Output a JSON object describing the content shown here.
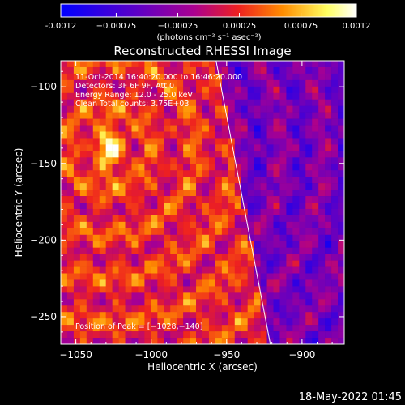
{
  "chart_data": {
    "type": "heatmap",
    "title": "Reconstructed RHESSI Image",
    "xlabel": "Heliocentric X (arcsec)",
    "ylabel": "Heliocentric Y (arcsec)",
    "xlim": [
      -1060,
      -872
    ],
    "ylim": [
      -268,
      -83
    ],
    "xticks": [
      -1050,
      -1000,
      -950,
      -900
    ],
    "xtick_labels": [
      "−1050",
      "−1000",
      "−950",
      "−900"
    ],
    "yticks": [
      -100,
      -150,
      -200,
      -250
    ],
    "ytick_labels": [
      "−100",
      "−150",
      "−200",
      "−250"
    ],
    "colorbar": {
      "range": [
        -0.0012,
        0.0012
      ],
      "ticks": [
        -0.0012,
        -0.00075,
        -0.00025,
        0.00025,
        0.00075,
        0.0012
      ],
      "tick_labels": [
        "-0.0012",
        "−0.00075",
        "−0.00025",
        "0.00025",
        "0.00075",
        "0.0012"
      ],
      "unit_label": "(photons cm⁻² s⁻¹ asec⁻²)",
      "colors": [
        "#0000ff",
        "#5a00c8",
        "#aa0090",
        "#ee2020",
        "#ff8c00",
        "#ffff60",
        "#ffffff"
      ]
    },
    "annotations": [
      "11-Oct-2014 16:40:20.000 to 16:46:20.000",
      "Detectors: 3F 6F 9F, Att 0",
      "Energy Range: 12.0 - 25.0 keV",
      "Clean    Total counts: 3.75E+03"
    ],
    "peak_label": "Position of Peak = [−1028,−140]",
    "peak": {
      "x": -1028,
      "y": -140
    },
    "limb_line": {
      "x_top": -957,
      "x_bottom": -921
    },
    "grid": false
  },
  "footer": {
    "timestamp": "18-May-2022 01:45"
  }
}
